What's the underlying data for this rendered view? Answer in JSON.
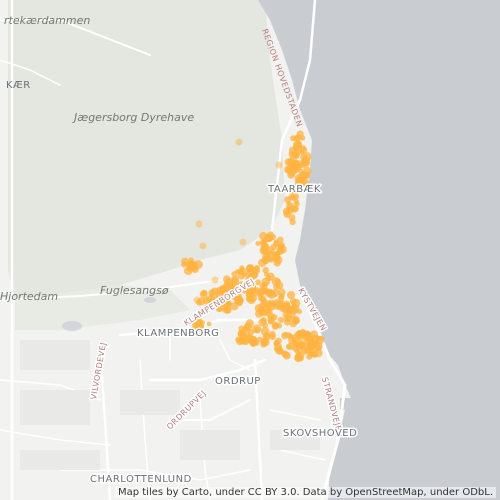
{
  "map": {
    "basemap": "carto-positron",
    "labels": {
      "kaer": "KÆR",
      "jaegersborg": "Jægersborg Dyrehave",
      "taarbaek": "TAARBÆK",
      "fuglesangso": "Fuglesangsø",
      "hjortedam": "Hjortedam",
      "klampenborg": "KLAMPENBORG",
      "klampenborgvej": "KLAMPENBORGVEJ",
      "ordrup": "ORDRUP",
      "ordrupvej": "ORDRUPVEJ",
      "vilvordevej": "VILVORDEVEJ",
      "skovshoved": "SKOVSHOVED",
      "charlottenlund": "CHARLOTTENLUND",
      "strandvejen": "STRANDVEJEN",
      "kyst_strandvejen": "KYSTVEJEN",
      "region_hovedstaden": "REGION HOVEDSTADEN",
      "rtekaerdammen": "rtekærdammen"
    },
    "colors": {
      "water": "#c9cdd2",
      "land": "#f2f2f0",
      "park": "#e6e8e2",
      "road": "#ffffff",
      "points": "#ffb340"
    },
    "attribution": "Map tiles by Carto, under CC BY 3.0. Data by OpenStreetMap, under ODbL."
  }
}
